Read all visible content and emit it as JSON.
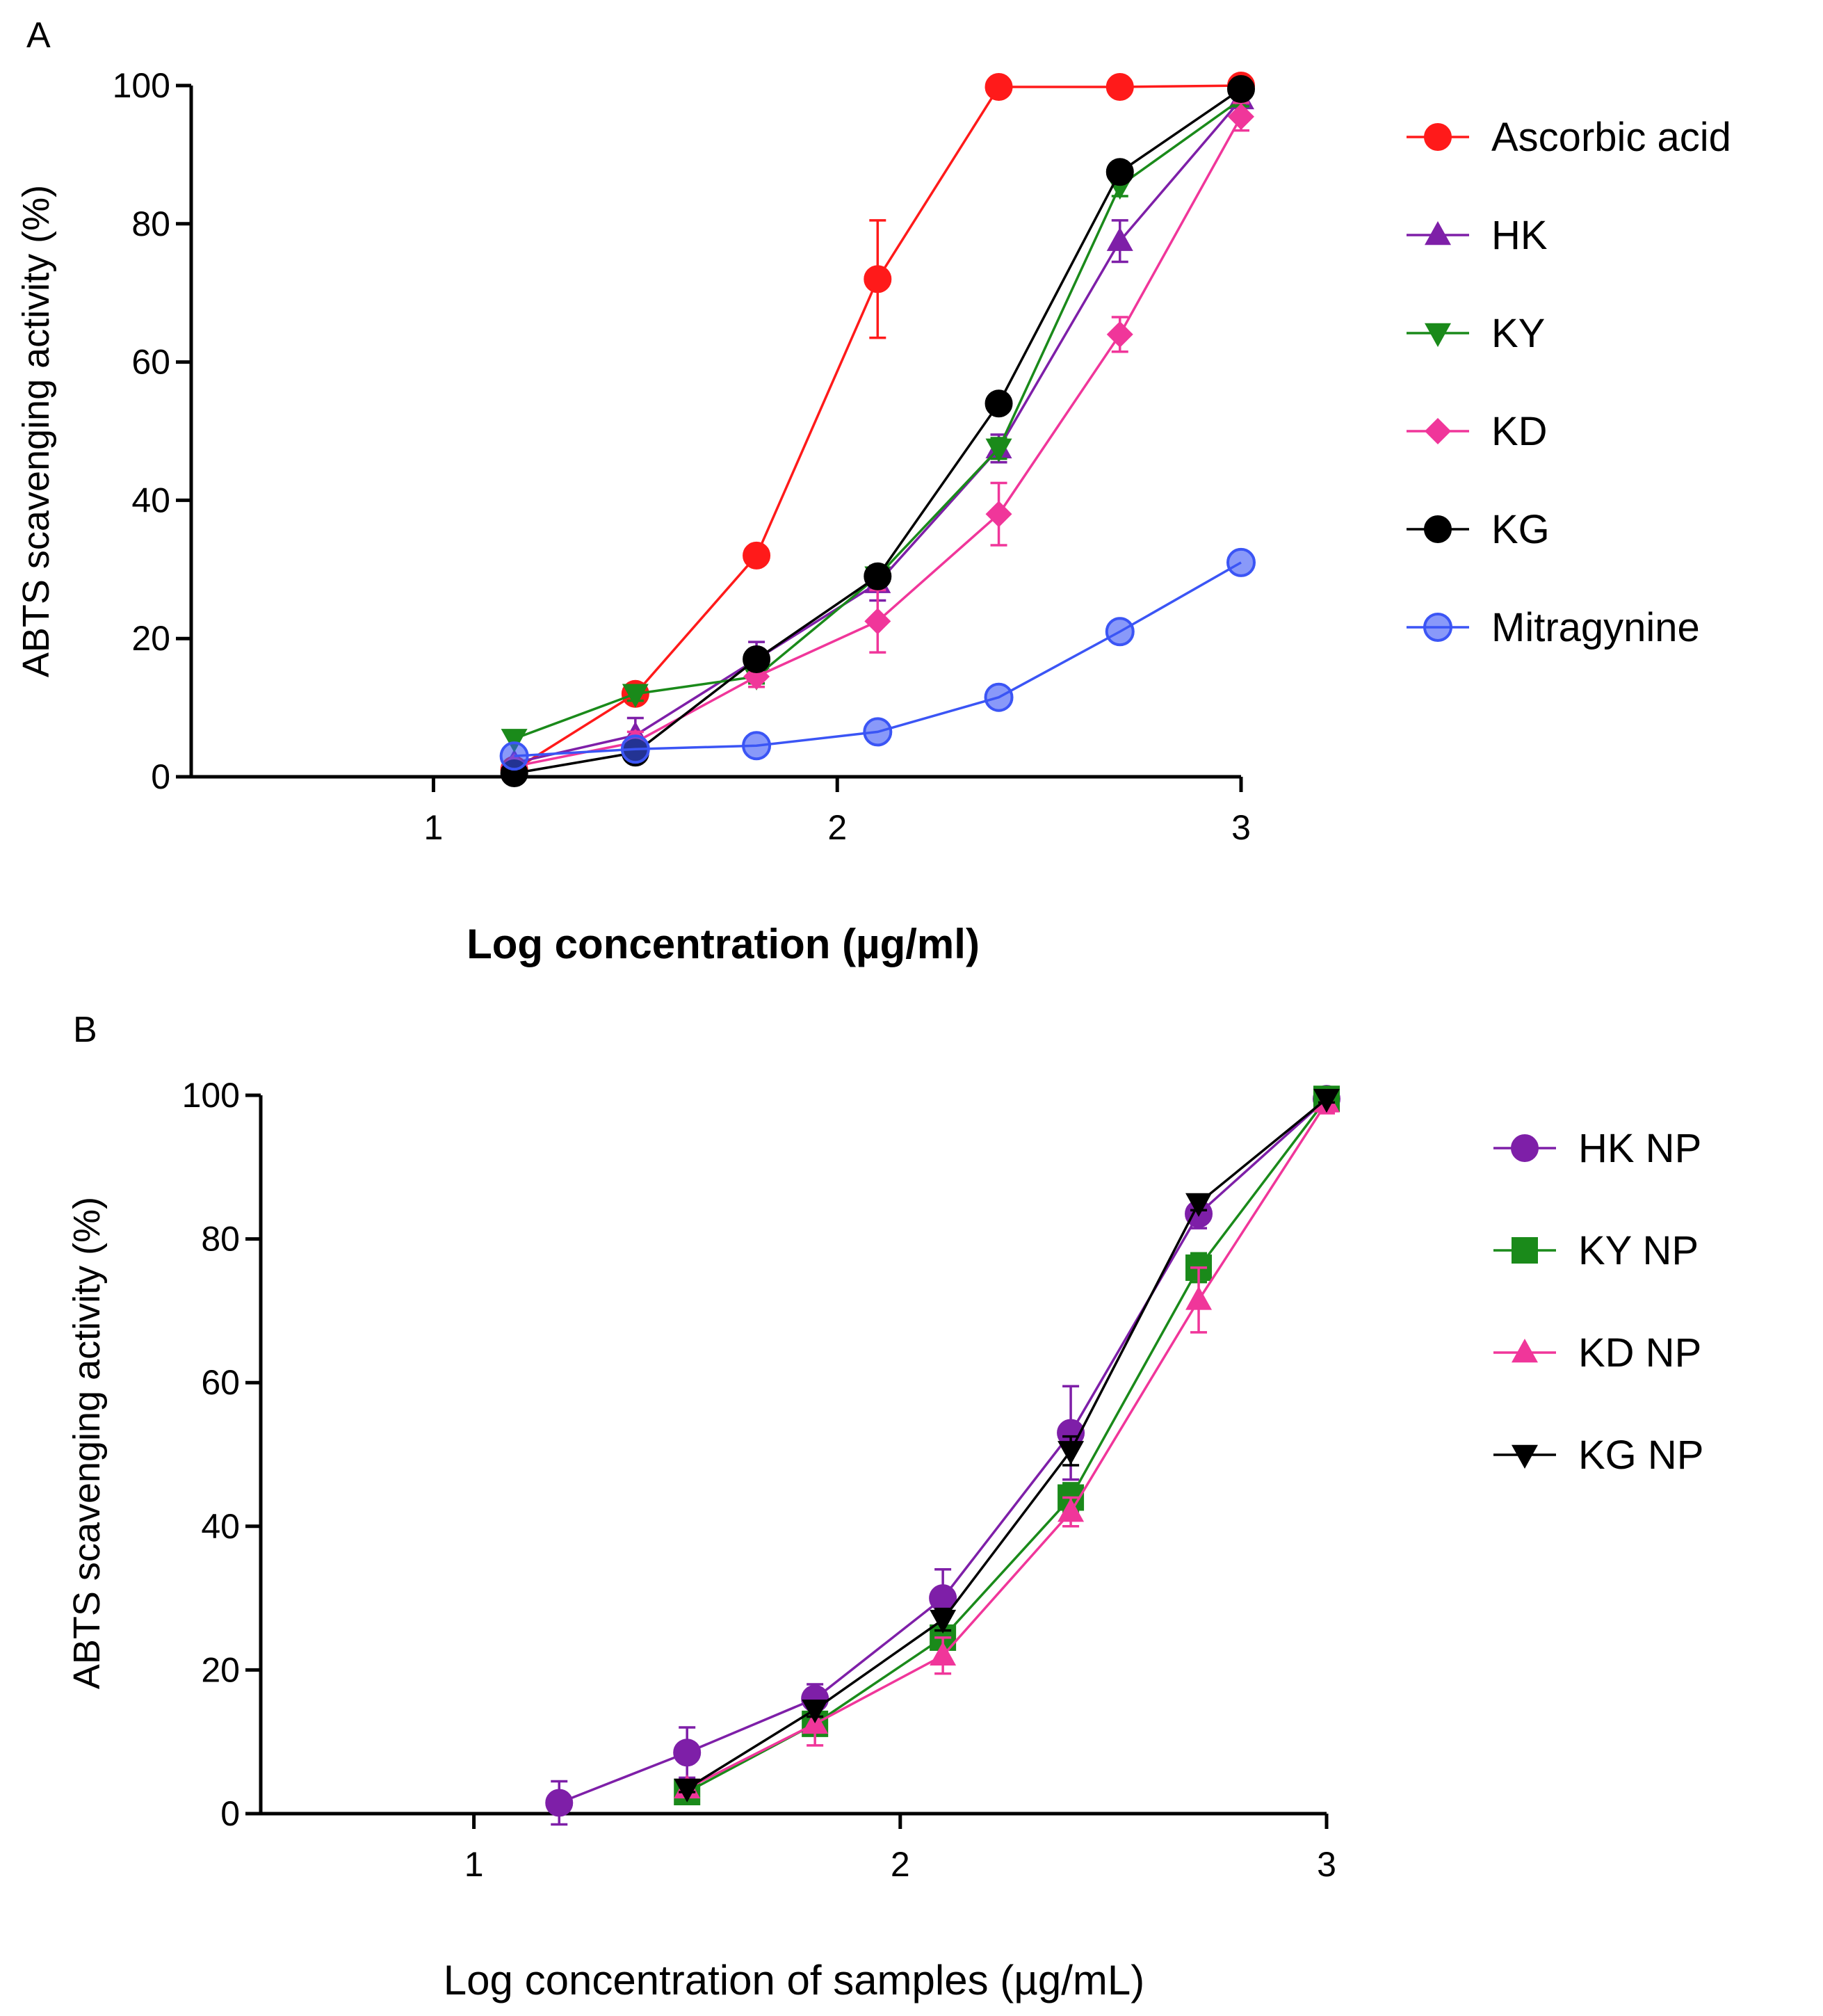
{
  "chart_data": [
    {
      "panel_label": "A",
      "type": "line",
      "xlabel": "Log concentration (µg/ml)",
      "ylabel": "ABTS scavenging activity (%)",
      "xlim": [
        0.4,
        3.0
      ],
      "ylim": [
        0,
        100
      ],
      "x_ticks": [
        1,
        2,
        3
      ],
      "x_tick_labels": [
        "1",
        "2",
        "3"
      ],
      "y_ticks": [
        0,
        20,
        40,
        60,
        80,
        100
      ],
      "y_tick_labels": [
        "0",
        "20",
        "40",
        "60",
        "80",
        "100"
      ],
      "xlabel_bold": true,
      "legend_position": "right",
      "series": [
        {
          "name": "Ascorbic acid",
          "color": "#ff1a1a",
          "marker": "circle",
          "x": [
            1.2,
            1.5,
            1.8,
            2.1,
            2.4,
            2.7,
            3.0
          ],
          "values": [
            1,
            12,
            32,
            72,
            99.8,
            99.8,
            100
          ],
          "errors": [
            0,
            0,
            0,
            8.5,
            0,
            0,
            0
          ]
        },
        {
          "name": "HK",
          "color": "#7e1fa8",
          "marker": "triangle-up",
          "x": [
            1.2,
            1.5,
            1.8,
            2.1,
            2.4,
            2.7,
            3.0
          ],
          "values": [
            2,
            6,
            17,
            28,
            47.5,
            77.5,
            98
          ],
          "errors": [
            0,
            2.5,
            2.5,
            2.5,
            2,
            3,
            1
          ]
        },
        {
          "name": "KY",
          "color": "#1a8a1a",
          "marker": "triangle-down",
          "x": [
            1.2,
            1.5,
            1.8,
            2.1,
            2.4,
            2.7,
            3.0
          ],
          "values": [
            5.5,
            12,
            14.5,
            29,
            47.5,
            85.5,
            98
          ],
          "errors": [
            0,
            1,
            1,
            1.5,
            1.5,
            1.5,
            1
          ]
        },
        {
          "name": "KD",
          "color": "#f0369a",
          "marker": "diamond",
          "x": [
            1.2,
            1.5,
            1.8,
            2.1,
            2.4,
            2.7,
            3.0
          ],
          "values": [
            1.5,
            5,
            14.5,
            22.5,
            38,
            64,
            95.5
          ],
          "errors": [
            0,
            1.5,
            1.5,
            4.5,
            4.5,
            2.5,
            2
          ]
        },
        {
          "name": "KG",
          "color": "#000000",
          "marker": "circle",
          "x": [
            1.2,
            1.5,
            1.8,
            2.1,
            2.4,
            2.7,
            3.0
          ],
          "values": [
            0.5,
            3.5,
            17,
            29,
            54,
            87.5,
            99.5
          ],
          "errors": [
            0,
            0,
            1,
            1,
            1,
            1,
            0.5
          ]
        },
        {
          "name": "Mitragynine",
          "color": "#3b55f5",
          "marker": "circle-light",
          "x": [
            1.2,
            1.5,
            1.8,
            2.1,
            2.4,
            2.7,
            3.0
          ],
          "values": [
            3,
            4,
            4.5,
            6.5,
            11.5,
            21,
            31
          ],
          "errors": [
            0,
            0,
            0,
            0,
            0,
            0,
            0
          ]
        }
      ]
    },
    {
      "panel_label": "B",
      "type": "line",
      "xlabel": "Log concentration of samples (µg/mL)",
      "ylabel": "ABTS scavenging activity (%)",
      "xlim": [
        0.5,
        3.0
      ],
      "ylim": [
        0,
        100
      ],
      "x_ticks": [
        1,
        2,
        3
      ],
      "x_tick_labels": [
        "1",
        "2",
        "3"
      ],
      "y_ticks": [
        0,
        20,
        40,
        60,
        80,
        100
      ],
      "y_tick_labels": [
        "0",
        "20",
        "40",
        "60",
        "80",
        "100"
      ],
      "xlabel_bold": false,
      "legend_position": "right",
      "series": [
        {
          "name": "HK NP",
          "color": "#7e1fa8",
          "marker": "circle",
          "x": [
            1.2,
            1.5,
            1.8,
            2.1,
            2.4,
            2.7,
            3.0
          ],
          "values": [
            1.5,
            8.5,
            16,
            30,
            53,
            83.5,
            99.5
          ],
          "errors": [
            3,
            3.5,
            2,
            4,
            6.5,
            2,
            0.5
          ]
        },
        {
          "name": "KY NP",
          "color": "#1a8a1a",
          "marker": "square",
          "x": [
            1.5,
            1.8,
            2.1,
            2.4,
            2.7,
            3.0
          ],
          "values": [
            3,
            12.5,
            24.5,
            44,
            76,
            99.5
          ],
          "errors": [
            0.5,
            1,
            1.5,
            2,
            2,
            0.5
          ]
        },
        {
          "name": "KD NP",
          "color": "#f0369a",
          "marker": "triangle-up",
          "x": [
            1.5,
            1.8,
            2.1,
            2.4,
            2.7,
            3.0
          ],
          "values": [
            3.5,
            12.5,
            22,
            42,
            71.5,
            99
          ],
          "errors": [
            0.5,
            3,
            2.5,
            2,
            4.5,
            1.5
          ]
        },
        {
          "name": "KG NP",
          "color": "#000000",
          "marker": "triangle-down",
          "x": [
            1.5,
            1.8,
            2.1,
            2.4,
            2.7,
            3.0
          ],
          "values": [
            3.5,
            14.5,
            27,
            50.5,
            85,
            99.5
          ],
          "errors": [
            0.5,
            1,
            1.5,
            2,
            1,
            0.5
          ]
        }
      ]
    }
  ]
}
